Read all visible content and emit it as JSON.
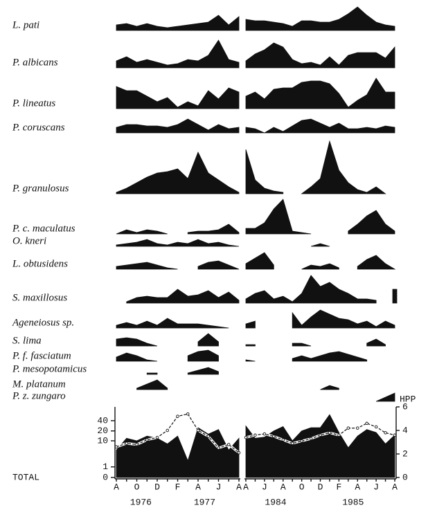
{
  "chart_data": {
    "type": "silhouette",
    "species": [
      {
        "name": "L. pati",
        "values": [
          [
            8,
            10,
            6,
            10,
            6,
            4,
            6,
            8,
            10,
            12,
            22,
            8,
            20
          ],
          [
            16,
            14,
            14,
            12,
            10,
            6,
            14,
            14,
            12,
            12,
            16,
            24,
            34,
            22,
            12,
            8,
            6
          ]
        ]
      },
      {
        "name": "P. albicans",
        "values": [
          [
            10,
            16,
            8,
            12,
            8,
            4,
            6,
            12,
            10,
            18,
            40,
            12,
            8
          ],
          [
            10,
            20,
            26,
            36,
            30,
            12,
            6,
            8,
            4,
            16,
            4,
            18,
            22,
            22,
            22,
            14,
            30
          ]
        ]
      },
      {
        "name": "P. lineatus",
        "values": [
          [
            32,
            26,
            26,
            18,
            10,
            16,
            2,
            10,
            4,
            26,
            14,
            30,
            24
          ],
          [
            18,
            24,
            14,
            28,
            30,
            30,
            38,
            40,
            40,
            36,
            22,
            2,
            12,
            20,
            44,
            24,
            24
          ]
        ]
      },
      {
        "name": "P. coruscans",
        "values": [
          [
            8,
            12,
            12,
            10,
            10,
            8,
            12,
            20,
            12,
            4,
            12,
            6,
            8
          ],
          [
            8,
            6,
            0,
            8,
            2,
            10,
            18,
            20,
            14,
            8,
            14,
            6,
            6,
            8,
            6,
            10,
            8
          ]
        ]
      },
      {
        "name": "P. granulosus",
        "values": [
          [
            2,
            8,
            16,
            24,
            30,
            32,
            36,
            22,
            60,
            30,
            20,
            10,
            2
          ],
          [
            64,
            20,
            8,
            4,
            2,
            null,
            0,
            10,
            22,
            76,
            34,
            16,
            6,
            2,
            10,
            0,
            null
          ]
        ]
      },
      {
        "name": "P. c. maculatus",
        "values": [
          [
            0,
            6,
            2,
            6,
            4,
            0,
            null,
            2,
            4,
            4,
            6,
            14,
            2
          ],
          [
            8,
            8,
            16,
            36,
            50,
            4,
            2,
            0,
            null,
            null,
            null,
            4,
            14,
            26,
            34,
            14,
            4
          ]
        ]
      },
      {
        "name": "O. kneri",
        "values": [
          [
            2,
            4,
            6,
            10,
            4,
            2,
            6,
            4,
            10,
            4,
            6,
            2,
            0
          ],
          [
            null,
            null,
            null,
            null,
            null,
            null,
            null,
            0,
            4,
            0,
            null,
            null,
            null,
            null,
            null,
            null,
            null
          ]
        ]
      },
      {
        "name": "L. obtusidens",
        "values": [
          [
            4,
            6,
            8,
            10,
            6,
            2,
            0,
            null,
            4,
            10,
            12,
            6,
            0
          ],
          [
            8,
            16,
            24,
            6,
            null,
            null,
            0,
            6,
            4,
            8,
            2,
            null,
            4,
            14,
            20,
            8,
            0
          ]
        ]
      },
      {
        "name": "S. maxillosus",
        "values": [
          [
            null,
            2,
            8,
            10,
            8,
            8,
            20,
            10,
            12,
            18,
            8,
            16,
            4
          ],
          [
            6,
            14,
            18,
            6,
            10,
            2,
            14,
            40,
            24,
            30,
            20,
            14,
            6,
            6,
            4,
            null,
            20
          ]
        ]
      },
      {
        "name": "Ageneiosus sp.",
        "values": [
          [
            4,
            8,
            4,
            10,
            4,
            14,
            6,
            6,
            6,
            4,
            2,
            0,
            null
          ],
          [
            6,
            10,
            null,
            null,
            null,
            22,
            4,
            16,
            26,
            20,
            14,
            12,
            6,
            10,
            2,
            10,
            4
          ]
        ]
      },
      {
        "name": "S. lima",
        "values": [
          [
            10,
            12,
            10,
            4,
            0,
            null,
            null,
            null,
            6,
            18,
            6,
            null,
            null
          ],
          [
            2,
            2,
            null,
            null,
            null,
            4,
            4,
            0,
            null,
            null,
            null,
            null,
            null,
            4,
            10,
            2,
            null
          ]
        ]
      },
      {
        "name": "P. f. fasciatum",
        "values": [
          [
            6,
            12,
            8,
            2,
            0,
            null,
            null,
            8,
            14,
            16,
            8,
            null,
            null
          ],
          [
            2,
            0,
            null,
            null,
            null,
            4,
            8,
            4,
            8,
            12,
            14,
            10,
            6,
            2,
            null,
            null,
            null
          ]
        ]
      },
      {
        "name": "P. mesopotamicus",
        "values": [
          [
            null,
            null,
            null,
            2,
            2,
            null,
            null,
            2,
            6,
            10,
            4,
            null,
            null
          ],
          [
            null,
            null,
            null,
            null,
            null,
            null,
            null,
            null,
            null,
            null,
            null,
            null,
            null,
            null,
            null,
            null,
            null
          ]
        ]
      },
      {
        "name": "M. platanum",
        "values": [
          [
            null,
            null,
            2,
            8,
            14,
            2,
            null,
            null,
            null,
            null,
            null,
            null,
            null
          ],
          [
            null,
            null,
            null,
            null,
            null,
            null,
            null,
            null,
            0,
            6,
            2,
            null,
            null,
            null,
            null,
            null,
            null
          ]
        ]
      },
      {
        "name": "P. z. zungaro",
        "values": [
          [
            null,
            null,
            null,
            null,
            null,
            null,
            null,
            null,
            null,
            null,
            null,
            null,
            null
          ],
          [
            null,
            null,
            null,
            null,
            null,
            null,
            null,
            null,
            null,
            null,
            null,
            null,
            null,
            null,
            0,
            6,
            12
          ]
        ]
      }
    ],
    "periods": [
      {
        "categories": [
          "A",
          null,
          "O",
          null,
          "D",
          null,
          "F",
          null,
          "A",
          null,
          "J",
          null,
          "A"
        ],
        "years": [
          "1976",
          "1977"
        ]
      },
      {
        "categories": [
          "A",
          null,
          "J",
          null,
          "A",
          null,
          "O",
          null,
          "D",
          null,
          "F",
          null,
          "A",
          null,
          "J",
          null,
          "A"
        ],
        "years": [
          "1984",
          "1985"
        ]
      }
    ],
    "total": {
      "label": "TOTAL",
      "values": [
        [
          5,
          12,
          10,
          14,
          12,
          8,
          14,
          2,
          25,
          16,
          22,
          5,
          12
        ],
        [
          28,
          12,
          13,
          20,
          27,
          10,
          20,
          25,
          25,
          60,
          18,
          6,
          14,
          22,
          18,
          8,
          15
        ]
      ],
      "ylim": [
        0,
        100
      ],
      "yscale": "log1p",
      "yticks": [
        0,
        1,
        10,
        20,
        40
      ],
      "hpp": {
        "label": "HPP",
        "values": [
          [
            2.6,
            2.9,
            2.8,
            3.2,
            3.4,
            4.0,
            5.2,
            5.4,
            4.0,
            3.5,
            2.5,
            2.8,
            2.1
          ],
          [
            3.4,
            3.6,
            3.7,
            3.5,
            3.2,
            2.9,
            3.1,
            3.3,
            3.6,
            3.8,
            3.6,
            4.2,
            4.2,
            4.6,
            4.3,
            3.8,
            3.6
          ]
        ],
        "y2lim": [
          0,
          6
        ],
        "y2ticks": [
          0,
          2,
          4,
          6
        ]
      }
    }
  }
}
